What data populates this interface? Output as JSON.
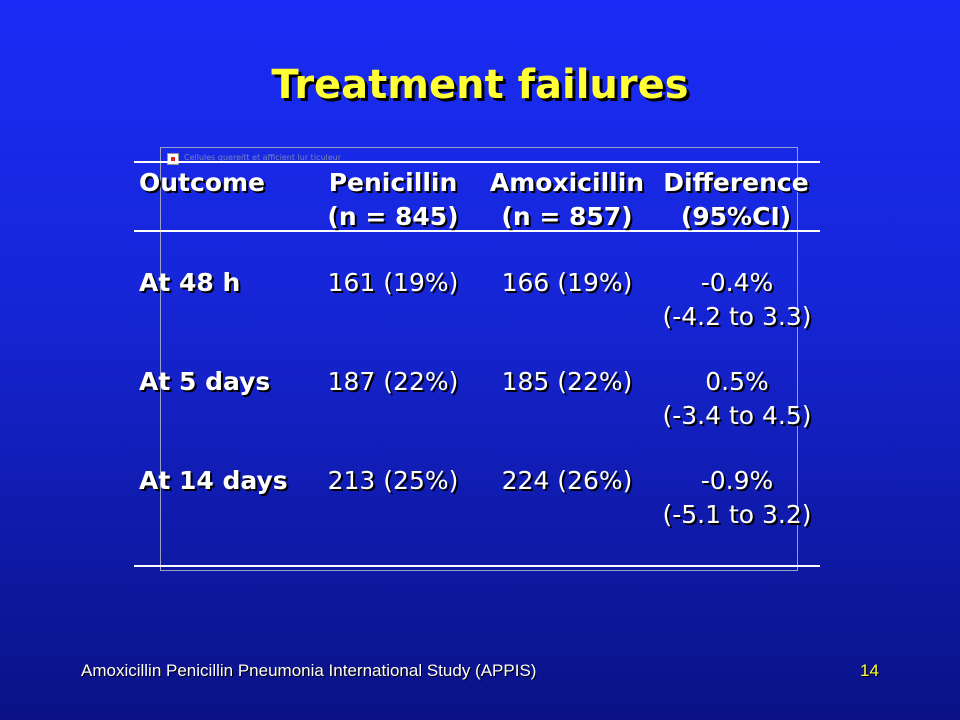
{
  "slide": {
    "title": "Treatment failures",
    "footer": "Amoxicillin Penicillin Pneumonia International Study (APPIS)",
    "page_number": "14",
    "broken_image_alt": "Cellules quereitt et afficient lur ticuleur"
  },
  "table": {
    "headers": [
      {
        "line1": "Outcome",
        "line2": ""
      },
      {
        "line1": "Penicillin",
        "line2": "(n = 845)"
      },
      {
        "line1": "Amoxicillin",
        "line2": "(n = 857)"
      },
      {
        "line1": "Difference",
        "line2": "(95%CI)"
      }
    ],
    "rows": [
      {
        "outcome": "At 48 h",
        "penicillin": "161 (19%)",
        "amoxicillin": "166 (19%)",
        "difference": "-0.4%",
        "ci": "(-4.2 to 3.3)"
      },
      {
        "outcome": "At 5 days",
        "penicillin": "187 (22%)",
        "amoxicillin": "185 (22%)",
        "difference": "0.5%",
        "ci": "(-3.4 to 4.5)"
      },
      {
        "outcome": "At 14 days",
        "penicillin": "213 (25%)",
        "amoxicillin": "224 (26%)",
        "difference": "-0.9%",
        "ci": "(-5.1 to 3.2)"
      }
    ]
  },
  "colors": {
    "background_top": "#1a2cf6",
    "background_bottom": "#0a1285",
    "title": "#ffff33",
    "text": "#ffffff"
  }
}
